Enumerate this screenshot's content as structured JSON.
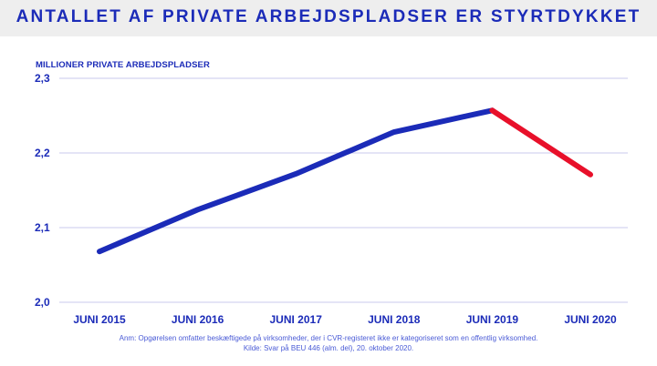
{
  "title": "ANTALLET AF PRIVATE ARBEJDSPLADSER ER STYRTDYKKET",
  "chart_data": {
    "type": "line",
    "ylabel": "MILLIONER PRIVATE ARBEJDSPLADSER",
    "xlabel": "",
    "categories": [
      "JUNI 2015",
      "JUNI 2016",
      "JUNI 2017",
      "JUNI 2018",
      "JUNI 2019",
      "JUNI 2020"
    ],
    "values": [
      2.068,
      2.124,
      2.172,
      2.228,
      2.257,
      2.171
    ],
    "ylim": [
      2.0,
      2.3
    ],
    "yticks": [
      "2,0",
      "2,1",
      "2,2",
      "2,3"
    ],
    "grid": true,
    "colors": {
      "line": "#1b2bb8",
      "decline_segment": "#e8102a",
      "grid": "#c8c8ee"
    }
  },
  "footnote": {
    "note": "Anm: Opgørelsen omfatter beskæftigede på virksomheder, der i CVR-registeret ikke er kategoriseret som en offentlig virksomhed.",
    "source": "Kilde: Svar på BEU 446 (alm. del), 20. oktober 2020."
  }
}
